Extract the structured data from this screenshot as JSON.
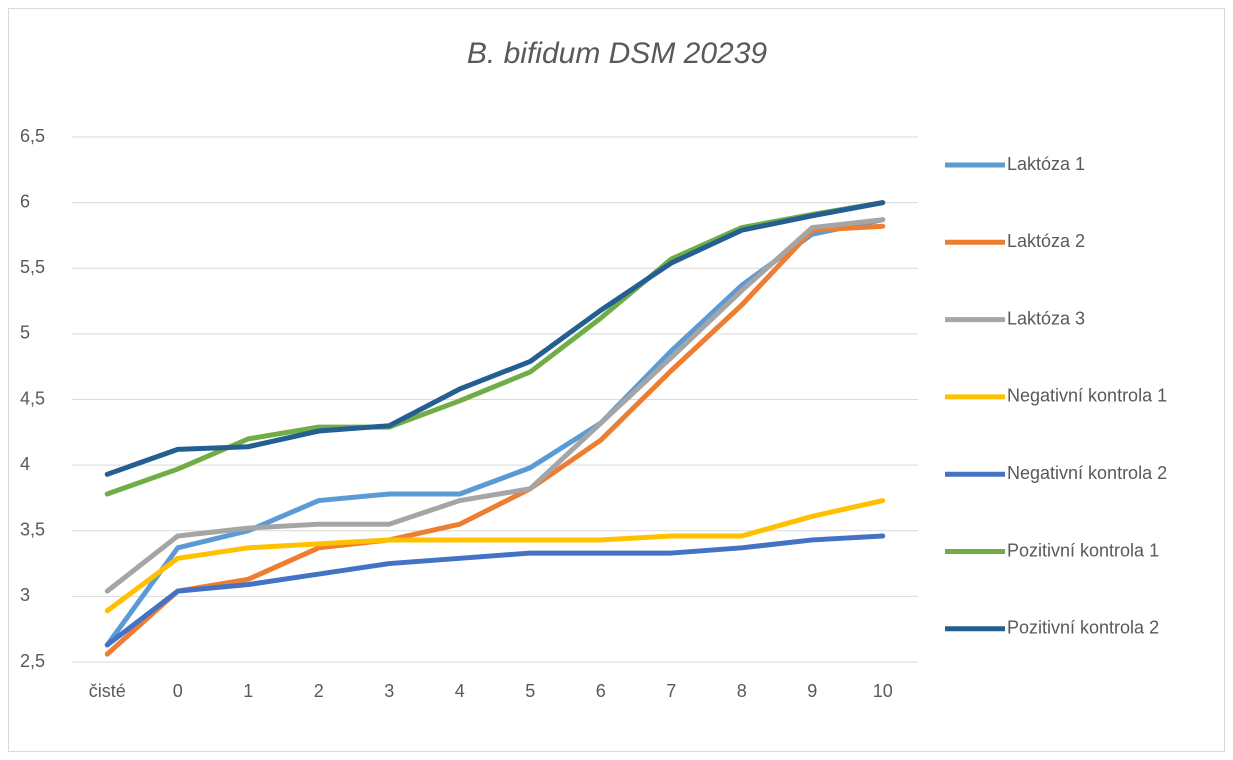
{
  "chart_data": {
    "type": "line",
    "title": "B. bifidum DSM 20239",
    "categories": [
      "čisté",
      "0",
      "1",
      "2",
      "3",
      "4",
      "5",
      "6",
      "7",
      "8",
      "9",
      "10"
    ],
    "ylim": [
      2.5,
      6.5
    ],
    "yticks": [
      {
        "value": 2.5,
        "label": "2,5"
      },
      3,
      {
        "value": 3.5,
        "label": "3,5"
      },
      4,
      {
        "value": 4.5,
        "label": "4,5"
      },
      5,
      {
        "value": 5.5,
        "label": "5,5"
      },
      6,
      {
        "value": 6.5,
        "label": "6,5"
      }
    ],
    "grid": true,
    "legend": "right",
    "series": [
      {
        "name": "Laktóza 1",
        "color": "#5b9bd5",
        "values": [
          2.63,
          3.37,
          3.5,
          3.73,
          3.78,
          3.78,
          3.98,
          4.32,
          4.87,
          5.37,
          5.76,
          5.87
        ]
      },
      {
        "name": "Laktóza 2",
        "color": "#ed7d31",
        "values": [
          2.56,
          3.04,
          3.13,
          3.37,
          3.43,
          3.55,
          3.82,
          4.19,
          4.72,
          5.22,
          5.79,
          5.82
        ]
      },
      {
        "name": "Laktóza 3",
        "color": "#a5a5a5",
        "values": [
          3.04,
          3.46,
          3.52,
          3.55,
          3.55,
          3.73,
          3.82,
          4.32,
          4.82,
          5.33,
          5.81,
          5.87
        ]
      },
      {
        "name": "Negativní kontrola 1",
        "color": "#ffc000",
        "values": [
          2.89,
          3.29,
          3.37,
          3.4,
          3.43,
          3.43,
          3.43,
          3.43,
          3.46,
          3.46,
          3.61,
          3.73
        ]
      },
      {
        "name": "Negativní kontrola 2",
        "color": "#4472c4",
        "values": [
          2.63,
          3.04,
          3.09,
          3.17,
          3.25,
          3.29,
          3.33,
          3.33,
          3.33,
          3.37,
          3.43,
          3.46
        ]
      },
      {
        "name": "Pozitivní kontrola 1",
        "color": "#70ad47",
        "values": [
          3.78,
          3.97,
          4.2,
          4.29,
          4.29,
          4.49,
          4.71,
          5.12,
          5.57,
          5.81,
          5.91,
          6.0
        ]
      },
      {
        "name": "Pozitivní kontrola 2",
        "color": "#255e91",
        "values": [
          3.93,
          4.12,
          4.14,
          4.26,
          4.3,
          4.58,
          4.79,
          5.18,
          5.54,
          5.79,
          5.9,
          6.0
        ]
      }
    ]
  }
}
